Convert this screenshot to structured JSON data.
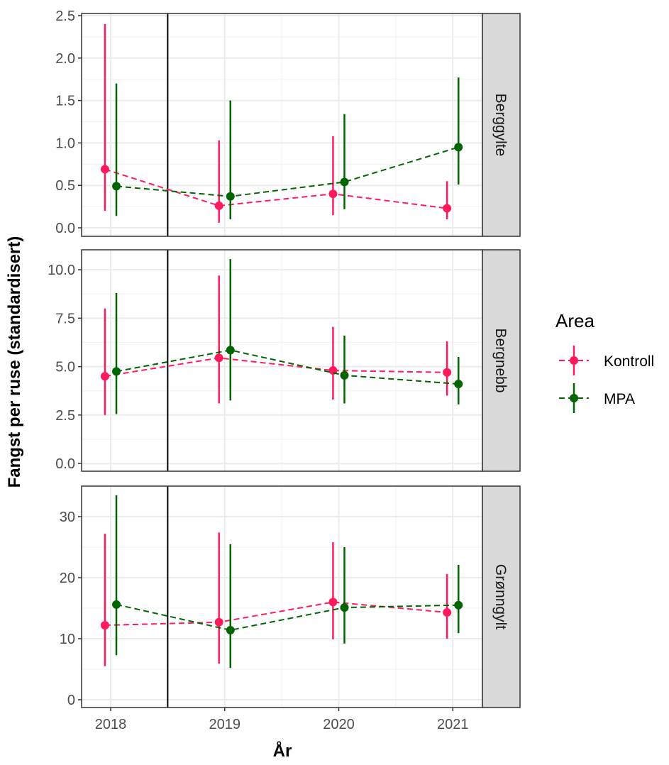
{
  "axis_labels": {
    "x": "År",
    "y": "Fangst per ruse (standardisert)"
  },
  "legend": {
    "title": "Area",
    "entries": [
      {
        "name": "Kontroll",
        "color": "#ff1a5e"
      },
      {
        "name": "MPA",
        "color": "#006400"
      }
    ]
  },
  "chart_data": [
    {
      "type": "line",
      "facet": "Berggylte",
      "x": [
        2018,
        2019,
        2020,
        2021
      ],
      "xlim": [
        2017.745,
        2021.26
      ],
      "xticks": [
        2018,
        2019,
        2020,
        2021
      ],
      "vline": 2018.5,
      "ylim": [
        -0.1,
        2.525
      ],
      "yticks": [
        {
          "value": 0,
          "label": "0.0"
        },
        0.5,
        {
          "value": 1,
          "label": "1.0"
        },
        1.5,
        {
          "value": 2,
          "label": "2.0"
        },
        2.5
      ],
      "grid": true,
      "series": [
        {
          "values": [
            0.69,
            0.26,
            0.4,
            0.23
          ],
          "low": [
            0.2,
            0.06,
            0.15,
            0.1
          ],
          "high": [
            2.4,
            1.03,
            1.08,
            0.55
          ]
        },
        {
          "values": [
            0.49,
            0.37,
            0.54,
            0.95
          ],
          "low": [
            0.14,
            0.1,
            0.22,
            0.51
          ],
          "high": [
            1.7,
            1.5,
            1.34,
            1.77
          ]
        }
      ]
    },
    {
      "type": "line",
      "facet": "Bergnebb",
      "x": [
        2018,
        2019,
        2020,
        2021
      ],
      "xlim": [
        2017.745,
        2021.26
      ],
      "xticks": [
        2018,
        2019,
        2020,
        2021
      ],
      "vline": 2018.5,
      "ylim": [
        -0.4,
        11.03
      ],
      "yticks": [
        {
          "value": 0,
          "label": "0.0"
        },
        2.5,
        {
          "value": 5,
          "label": "5.0"
        },
        7.5,
        {
          "value": 10,
          "label": "10.0"
        }
      ],
      "grid": true,
      "series": [
        {
          "values": [
            4.5,
            5.45,
            4.8,
            4.7
          ],
          "low": [
            2.5,
            3.1,
            3.3,
            3.5
          ],
          "high": [
            8.0,
            9.7,
            7.05,
            6.3
          ]
        },
        {
          "values": [
            4.75,
            5.85,
            4.55,
            4.1
          ],
          "low": [
            2.55,
            3.25,
            3.1,
            3.05
          ],
          "high": [
            8.8,
            10.55,
            6.6,
            5.5
          ]
        }
      ]
    },
    {
      "type": "line",
      "facet": "Grønngylt",
      "x": [
        2018,
        2019,
        2020,
        2021
      ],
      "xlim": [
        2017.745,
        2021.26
      ],
      "xticks": [
        2018,
        2019,
        2020,
        2021
      ],
      "vline": 2018.5,
      "ylim": [
        -1.28,
        35
      ],
      "yticks": [
        0,
        10,
        20,
        30
      ],
      "grid": true,
      "series": [
        {
          "values": [
            12.2,
            12.7,
            16,
            14.3
          ],
          "low": [
            5.5,
            5.9,
            9.9,
            10
          ],
          "high": [
            27.2,
            27.4,
            25.8,
            20.6
          ]
        },
        {
          "values": [
            15.6,
            11.4,
            15.1,
            15.5
          ],
          "low": [
            7.3,
            5.2,
            9.2,
            10.9
          ],
          "high": [
            33.5,
            25.5,
            25,
            22.1
          ]
        }
      ]
    }
  ]
}
